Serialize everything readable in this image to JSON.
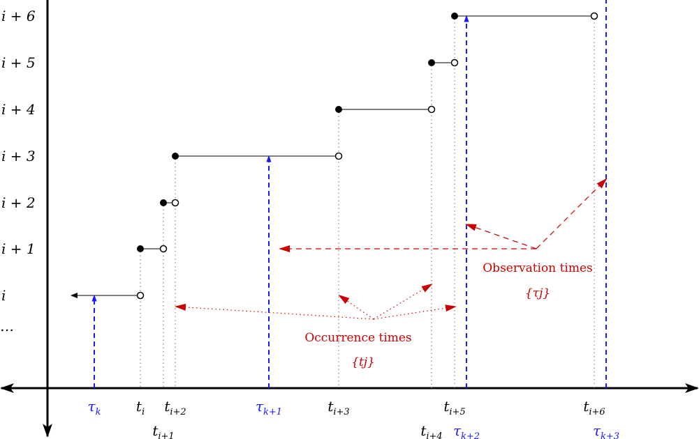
{
  "colors": {
    "observation": "#0000ff",
    "occurrence": "#cc0000",
    "grid": "#888888",
    "step": "#000000"
  },
  "levels": [
    "i",
    "i + 1",
    "i + 2",
    "i + 3",
    "i + 4",
    "i + 5",
    "i + 6"
  ],
  "ellipsis": "…",
  "times": {
    "tau_k": "τk",
    "t_i": "ti",
    "t_i1": "ti+1",
    "t_i2": "ti+2",
    "tau_k1": "τk+1",
    "t_i3": "ti+3",
    "t_i4": "ti+4",
    "t_i5": "ti+5",
    "tau_k2": "τk+2",
    "t_i6": "ti+6",
    "tau_k3": "τk+3"
  },
  "time_parts": {
    "tau_k": [
      "τ",
      "k"
    ],
    "t_i": [
      "t",
      "i"
    ],
    "t_i1": [
      "t",
      "i+1"
    ],
    "t_i2": [
      "t",
      "i+2"
    ],
    "tau_k1": [
      "τ",
      "k+1"
    ],
    "t_i3": [
      "t",
      "i+3"
    ],
    "t_i4": [
      "t",
      "i+4"
    ],
    "t_i5": [
      "t",
      "i+5"
    ],
    "tau_k2": [
      "τ",
      "k+2"
    ],
    "t_i6": [
      "t",
      "i+6"
    ],
    "tau_k3": [
      "τ",
      "k+3"
    ]
  },
  "annotations": {
    "occurrence_label": "Occurrence times",
    "occurrence_set": "{tj}",
    "observation_label": "Observation times",
    "observation_set": "{τj}"
  }
}
